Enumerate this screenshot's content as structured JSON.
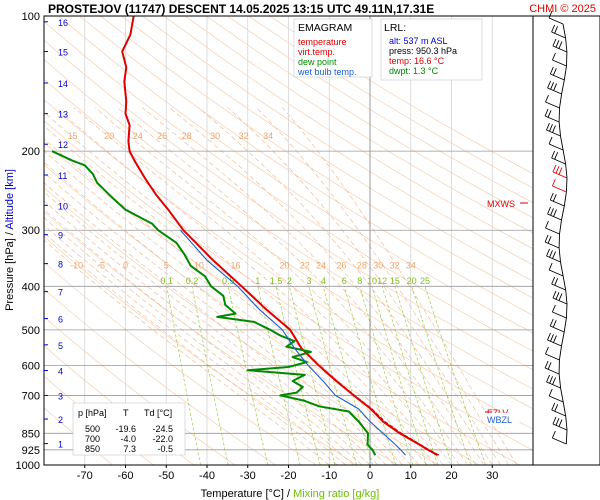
{
  "header": {
    "title": "PROSTEJOV (11747)   DESCENT   14.05.2025 13:15 UTC  49.11N,17.31E",
    "credit": "CHMI © 2025"
  },
  "legend": {
    "title": "EMAGRAM",
    "items": [
      {
        "label": "temperature",
        "color": "#e00000"
      },
      {
        "label": "virt.temp.",
        "color": "#e00000"
      },
      {
        "label": "dew point",
        "color": "#008800"
      },
      {
        "label": "wet bulb temp.",
        "color": "#1a5fd0"
      }
    ]
  },
  "lrl": {
    "title": "LRL:",
    "lines": [
      {
        "text": "alt: 537 m ASL",
        "color": "#0000cc"
      },
      {
        "text": "press: 950.3 hPa",
        "color": "#000000"
      },
      {
        "text": "temp: 16.6 °C",
        "color": "#e00000"
      },
      {
        "text": "dwpt: 1.3 °C",
        "color": "#008800"
      }
    ]
  },
  "levels_table": {
    "headers": [
      "p [hPa]",
      "T",
      "Td [°C]"
    ],
    "rows": [
      [
        "500",
        "-19.6",
        "-24.5"
      ],
      [
        "700",
        "-4.0",
        "-22.0"
      ],
      [
        "850",
        "7.3",
        "-0.5"
      ]
    ]
  },
  "annotations": {
    "mxws": "MXWS",
    "fzlv": "FZLV",
    "wbzl": "WBZL"
  },
  "chart_data": {
    "type": "line",
    "title": "EMAGRAM",
    "xlabel": "Temperature [°C]",
    "xlabel_sep": " / ",
    "xlabel2": "Mixing ratio [g/kg]",
    "ylabel": "Pressure [hPa]",
    "ylabel_sep": "  /  ",
    "ylabel2": "Altitude [km]",
    "xlim": [
      -80,
      40
    ],
    "ylim": [
      1000,
      100
    ],
    "y_scale": "log",
    "grid": true,
    "x_ticks": [
      -70,
      -60,
      -50,
      -40,
      -30,
      -20,
      -10,
      0,
      10,
      20,
      30
    ],
    "pressure_ticks": [
      100,
      200,
      300,
      400,
      500,
      600,
      700,
      850,
      925,
      1000
    ],
    "altitude_ticks": [
      {
        "km": 1,
        "p": 896
      },
      {
        "km": 2,
        "p": 790
      },
      {
        "km": 3,
        "p": 700
      },
      {
        "km": 4,
        "p": 616
      },
      {
        "km": 5,
        "p": 540
      },
      {
        "km": 6,
        "p": 472
      },
      {
        "km": 7,
        "p": 411
      },
      {
        "km": 8,
        "p": 356
      },
      {
        "km": 9,
        "p": 307
      },
      {
        "km": 10,
        "p": 264
      },
      {
        "km": 11,
        "p": 226
      },
      {
        "km": 12,
        "p": 193
      },
      {
        "km": 13,
        "p": 165
      },
      {
        "km": 14,
        "p": 141
      },
      {
        "km": 15,
        "p": 120
      },
      {
        "km": 16,
        "p": 103
      }
    ],
    "mixing_ratio_labels": [
      "0.1",
      "0.2",
      "0.5",
      "1",
      "1.5",
      "2",
      "3",
      "4",
      "6",
      "8",
      "10",
      "12",
      "15",
      "20",
      "25"
    ],
    "mixing_ratio_values": [
      0.1,
      0.2,
      0.5,
      1,
      1.5,
      2,
      3,
      4,
      6,
      8,
      10,
      12,
      15,
      20,
      25
    ],
    "theta_e_labels_low": [
      "-10",
      "-5",
      "0",
      "5",
      "10",
      "16",
      "20",
      "22",
      "24",
      "26",
      "28",
      "30",
      "32",
      "34"
    ],
    "theta_e_labels_high": [
      "15",
      "20",
      "24",
      "26",
      "28",
      "30",
      "32",
      "34"
    ],
    "series": [
      {
        "name": "temperature",
        "color": "#e00000",
        "points": [
          [
            950.3,
            16.6
          ],
          [
            925,
            14.2
          ],
          [
            900,
            12.1
          ],
          [
            850,
            7.3
          ],
          [
            800,
            3.2
          ],
          [
            750,
            0.2
          ],
          [
            700,
            -4.0
          ],
          [
            650,
            -8.3
          ],
          [
            600,
            -12.6
          ],
          [
            550,
            -16.8
          ],
          [
            500,
            -19.6
          ],
          [
            450,
            -25.5
          ],
          [
            400,
            -31.5
          ],
          [
            350,
            -38.5
          ],
          [
            300,
            -45.8
          ],
          [
            270,
            -49.5
          ],
          [
            250,
            -52.5
          ],
          [
            230,
            -55.2
          ],
          [
            210,
            -57.8
          ],
          [
            200,
            -59.0
          ],
          [
            190,
            -59.3
          ],
          [
            175,
            -59.0
          ],
          [
            165,
            -60.0
          ],
          [
            155,
            -59.8
          ],
          [
            140,
            -60.3
          ],
          [
            130,
            -59.8
          ],
          [
            120,
            -60.8
          ],
          [
            110,
            -58.8
          ],
          [
            100,
            -58.0
          ]
        ]
      },
      {
        "name": "virt.temp.",
        "color": "#e00000",
        "points": [
          [
            950.3,
            16.9
          ],
          [
            925,
            14.5
          ],
          [
            900,
            12.4
          ],
          [
            850,
            7.7
          ],
          [
            800,
            3.6
          ],
          [
            750,
            0.5
          ],
          [
            700,
            -3.8
          ],
          [
            650,
            -8.1
          ],
          [
            600,
            -12.5
          ],
          [
            550,
            -16.7
          ],
          [
            500,
            -19.5
          ],
          [
            450,
            -25.4
          ],
          [
            400,
            -31.4
          ]
        ]
      },
      {
        "name": "dew point",
        "color": "#008800",
        "points": [
          [
            950.3,
            1.3
          ],
          [
            925,
            0.6
          ],
          [
            900,
            -0.6
          ],
          [
            850,
            -0.5
          ],
          [
            800,
            -2.8
          ],
          [
            760,
            -5.2
          ],
          [
            740,
            -12.5
          ],
          [
            720,
            -16.0
          ],
          [
            700,
            -22.0
          ],
          [
            690,
            -18.0
          ],
          [
            670,
            -16.5
          ],
          [
            650,
            -19.0
          ],
          [
            630,
            -16.0
          ],
          [
            615,
            -30.0
          ],
          [
            605,
            -20.0
          ],
          [
            590,
            -15.5
          ],
          [
            575,
            -19.0
          ],
          [
            560,
            -14.5
          ],
          [
            545,
            -20.5
          ],
          [
            530,
            -18.5
          ],
          [
            515,
            -22.0
          ],
          [
            500,
            -24.5
          ],
          [
            480,
            -28.5
          ],
          [
            468,
            -37.5
          ],
          [
            460,
            -33.0
          ],
          [
            440,
            -35.5
          ],
          [
            420,
            -36.0
          ],
          [
            400,
            -39.0
          ],
          [
            380,
            -40.5
          ],
          [
            360,
            -44.0
          ],
          [
            340,
            -45.5
          ],
          [
            320,
            -47.5
          ],
          [
            300,
            -52.0
          ],
          [
            290,
            -53.5
          ],
          [
            270,
            -60.0
          ],
          [
            260,
            -62.0
          ],
          [
            250,
            -64.0
          ],
          [
            235,
            -67.0
          ],
          [
            225,
            -68.0
          ],
          [
            215,
            -70.0
          ],
          [
            210,
            -73.0
          ],
          [
            200,
            -78.0
          ]
        ]
      },
      {
        "name": "wet bulb temp.",
        "color": "#1a5fd0",
        "points": [
          [
            950.3,
            8.7
          ],
          [
            925,
            7.5
          ],
          [
            900,
            6.2
          ],
          [
            850,
            3.2
          ],
          [
            800,
            0.0
          ],
          [
            750,
            -2.8
          ],
          [
            700,
            -8.5
          ],
          [
            650,
            -11.5
          ],
          [
            600,
            -15.2
          ],
          [
            550,
            -18.5
          ],
          [
            500,
            -21.5
          ],
          [
            450,
            -27.2
          ],
          [
            400,
            -32.5
          ],
          [
            350,
            -40.0
          ],
          [
            300,
            -46.5
          ]
        ]
      }
    ]
  }
}
